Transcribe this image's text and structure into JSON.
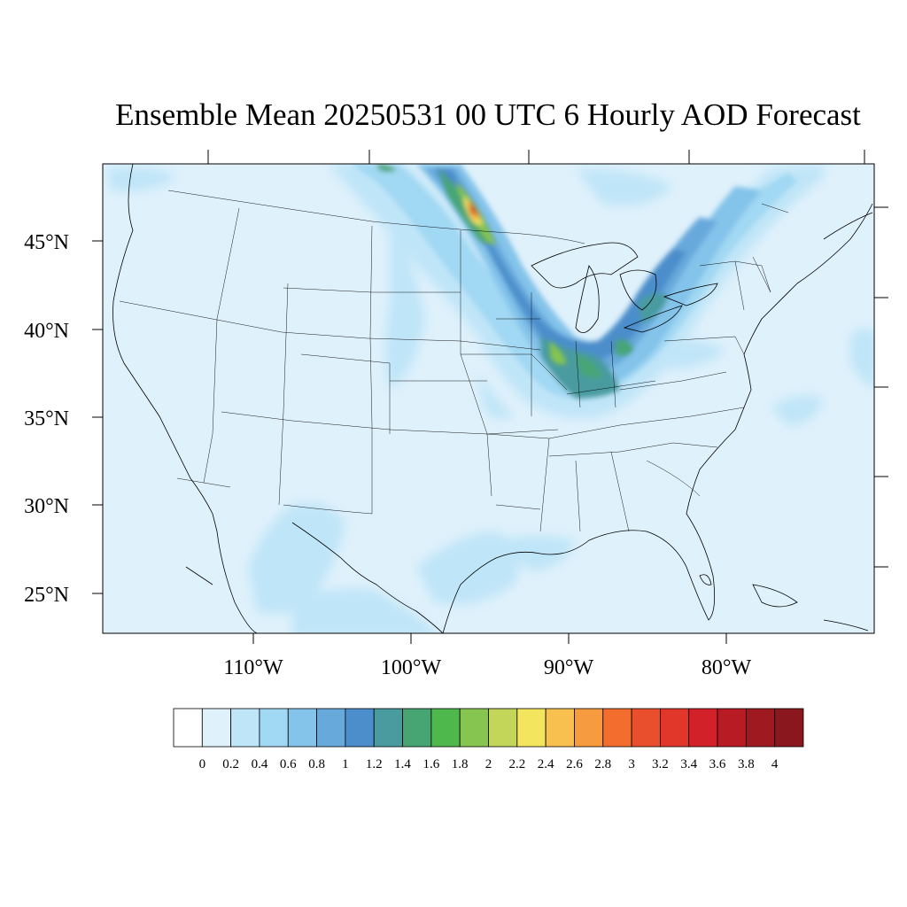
{
  "title": "Ensemble Mean 20250531 00 UTC 6 Hourly AOD Forecast",
  "map": {
    "lat_labels": [
      "45°N",
      "40°N",
      "35°N",
      "30°N",
      "25°N"
    ],
    "lon_labels": [
      "110°W",
      "100°W",
      "90°W",
      "80°W"
    ]
  },
  "colorbar": {
    "labels": [
      "0",
      "0.2",
      "0.4",
      "0.6",
      "0.8",
      "1",
      "1.2",
      "1.4",
      "1.6",
      "1.8",
      "2",
      "2.2",
      "2.4",
      "2.6",
      "2.8",
      "3",
      "3.2",
      "3.4",
      "3.6",
      "3.8",
      "4"
    ],
    "colors": [
      "#ffffff",
      "#dff1fb",
      "#bfe5f8",
      "#a1d8f3",
      "#84c3ea",
      "#68a9dc",
      "#4b8ecb",
      "#4a9ba0",
      "#47a574",
      "#4fb84c",
      "#86c54f",
      "#c3d65a",
      "#f4e55f",
      "#f8c04e",
      "#f79c3e",
      "#f26d2e",
      "#ea4f2d",
      "#e1362a",
      "#d22128",
      "#b81b24",
      "#9e1a20",
      "#8a171d"
    ]
  }
}
